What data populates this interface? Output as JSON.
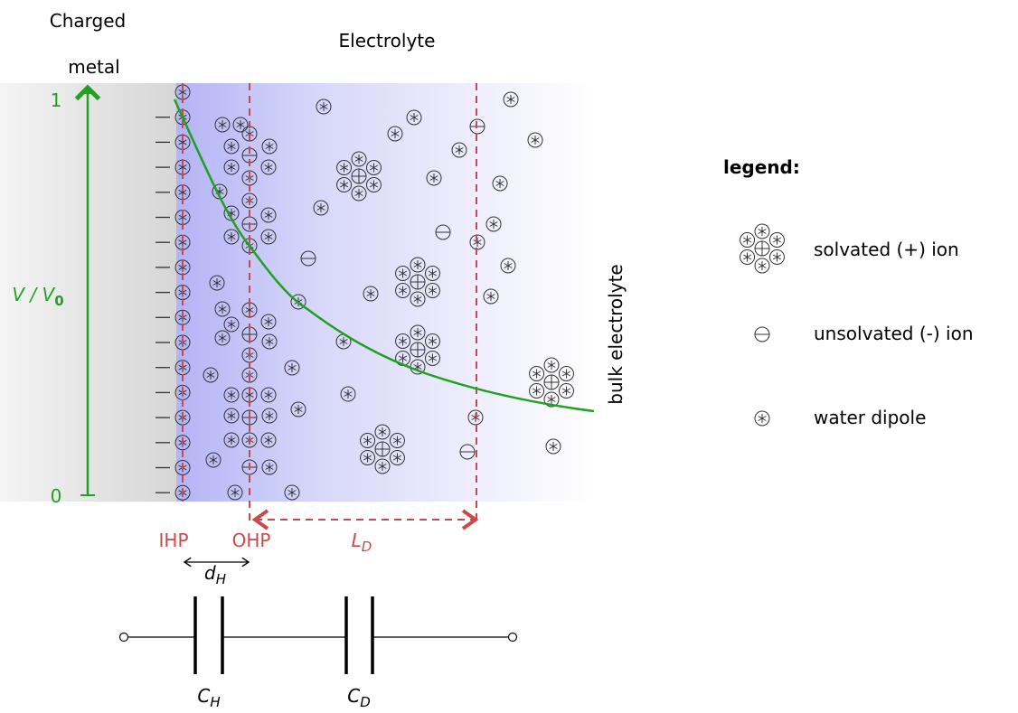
{
  "labels": {
    "metal": [
      "Charged",
      "metal"
    ],
    "electrolyte": "Electrolyte",
    "bulk": "bulk electrolyte"
  },
  "axis": {
    "top": "1",
    "bottom": "0",
    "label": {
      "main": "V / V",
      "sub": "0"
    }
  },
  "planes": {
    "ihp": "IHP",
    "ohp": "OHP",
    "diffuse": {
      "main": "L",
      "sub": "D"
    },
    "helmholtz": {
      "main": "d",
      "sub": "H"
    }
  },
  "circuit": {
    "c_h": {
      "main": "C",
      "sub": "H"
    },
    "c_d": {
      "main": "C",
      "sub": "D"
    }
  },
  "legend": {
    "title": "legend:",
    "items": [
      "solvated (+) ion",
      "unsolvated (-) ion",
      "water dipole"
    ]
  }
}
